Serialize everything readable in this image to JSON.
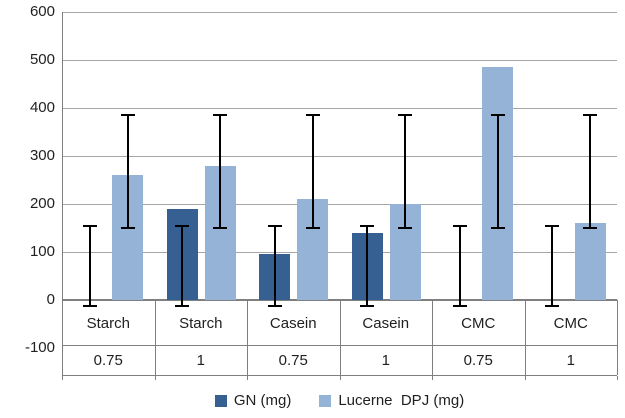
{
  "chart_data": {
    "type": "bar",
    "title": "",
    "xlabel": "",
    "ylabel": "",
    "categories_row1": [
      "Starch",
      "Starch",
      "Casein",
      "Casein",
      "CMC",
      "CMC"
    ],
    "categories_row2": [
      "0.75",
      "1",
      "0.75",
      "1",
      "0.75",
      "1"
    ],
    "series": [
      {
        "name": "GN (mg)",
        "color": "#366092",
        "values": [
          0,
          190,
          95,
          140,
          0,
          0
        ],
        "error_low": -12,
        "error_high": 155
      },
      {
        "name": "Lucerne  DPJ (mg)",
        "color": "#95B3D7",
        "values": [
          260,
          280,
          210,
          200,
          485,
          160
        ],
        "error_low": 150,
        "error_high": 385
      }
    ],
    "error_bars_on_every_group": true,
    "error_bar_color": "#000000",
    "y_axis": {
      "min": -100,
      "max": 600,
      "step": 100,
      "tick_labels": [
        "600",
        "500",
        "400",
        "300",
        "200",
        "100",
        "0",
        "-100"
      ]
    },
    "grid": true,
    "legend_position": "bottom",
    "gridline_color": "#a6a6a6",
    "axis_color": "#7f7f7f"
  }
}
